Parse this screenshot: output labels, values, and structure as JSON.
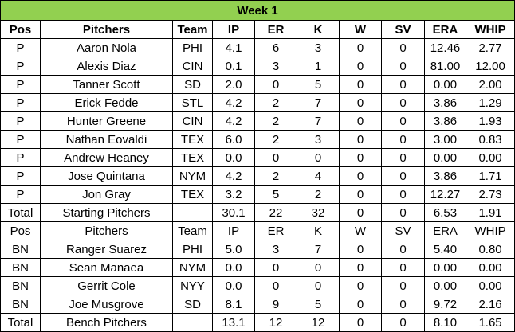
{
  "title": "Week 1",
  "columns": [
    "Pos",
    "Pitchers",
    "Team",
    "IP",
    "ER",
    "K",
    "W",
    "SV",
    "ERA",
    "WHIP"
  ],
  "starting": [
    [
      "P",
      "Aaron Nola",
      "PHI",
      "4.1",
      "6",
      "3",
      "0",
      "0",
      "12.46",
      "2.77"
    ],
    [
      "P",
      "Alexis Diaz",
      "CIN",
      "0.1",
      "3",
      "1",
      "0",
      "0",
      "81.00",
      "12.00"
    ],
    [
      "P",
      "Tanner Scott",
      "SD",
      "2.0",
      "0",
      "5",
      "0",
      "0",
      "0.00",
      "2.00"
    ],
    [
      "P",
      "Erick Fedde",
      "STL",
      "4.2",
      "2",
      "7",
      "0",
      "0",
      "3.86",
      "1.29"
    ],
    [
      "P",
      "Hunter Greene",
      "CIN",
      "4.2",
      "2",
      "7",
      "0",
      "0",
      "3.86",
      "1.93"
    ],
    [
      "P",
      "Nathan Eovaldi",
      "TEX",
      "6.0",
      "2",
      "3",
      "0",
      "0",
      "3.00",
      "0.83"
    ],
    [
      "P",
      "Andrew Heaney",
      "TEX",
      "0.0",
      "0",
      "0",
      "0",
      "0",
      "0.00",
      "0.00"
    ],
    [
      "P",
      "Jose Quintana",
      "NYM",
      "4.2",
      "2",
      "4",
      "0",
      "0",
      "3.86",
      "1.71"
    ],
    [
      "P",
      "Jon Gray",
      "TEX",
      "3.2",
      "5",
      "2",
      "0",
      "0",
      "12.27",
      "2.73"
    ]
  ],
  "starting_total": [
    "Total",
    "Starting Pitchers",
    "",
    "30.1",
    "22",
    "32",
    "0",
    "0",
    "6.53",
    "1.91"
  ],
  "bench": [
    [
      "BN",
      "Ranger Suarez",
      "PHI",
      "5.0",
      "3",
      "7",
      "0",
      "0",
      "5.40",
      "0.80"
    ],
    [
      "BN",
      "Sean Manaea",
      "NYM",
      "0.0",
      "0",
      "0",
      "0",
      "0",
      "0.00",
      "0.00"
    ],
    [
      "BN",
      "Gerrit Cole",
      "NYY",
      "0.0",
      "0",
      "0",
      "0",
      "0",
      "0.00",
      "0.00"
    ],
    [
      "BN",
      "Joe Musgrove",
      "SD",
      "8.1",
      "9",
      "5",
      "0",
      "0",
      "9.72",
      "2.16"
    ]
  ],
  "bench_total": [
    "Total",
    "Bench Pitchers",
    "",
    "13.1",
    "12",
    "12",
    "0",
    "0",
    "8.10",
    "1.65"
  ],
  "colors": {
    "title_bg": "#92d050"
  }
}
